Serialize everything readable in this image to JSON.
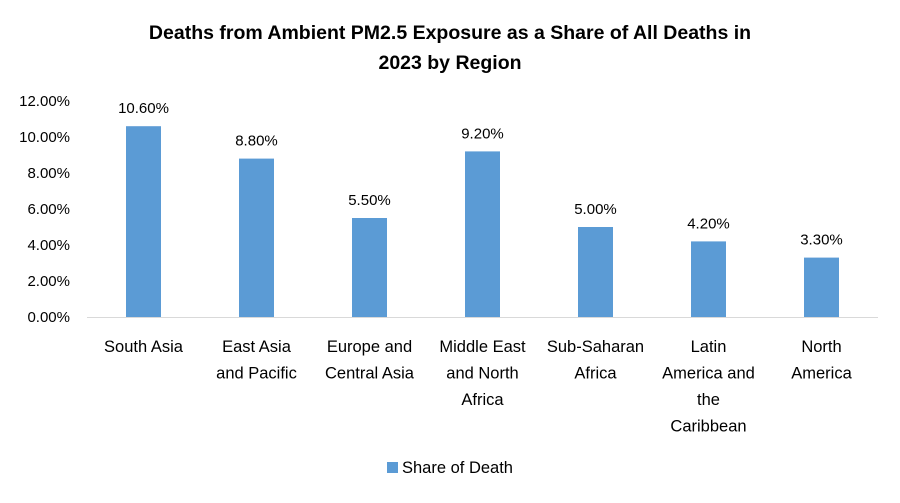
{
  "chart_data": {
    "type": "bar",
    "title": "Deaths from Ambient PM2.5 Exposure as a Share of All Deaths in 2023 by Region",
    "title_lines": [
      "Deaths from Ambient PM2.5 Exposure as a Share of All Deaths in",
      "2023 by Region"
    ],
    "xlabel": "",
    "ylabel": "",
    "categories": [
      "South Asia",
      "East Asia and Pacific",
      "Europe and Central Asia",
      "Middle East and North Africa",
      "Sub-Saharan Africa",
      "Latin America and the Caribbean",
      "North America"
    ],
    "category_label_lines": [
      [
        "South Asia"
      ],
      [
        "East Asia",
        "and Pacific"
      ],
      [
        "Europe and",
        "Central Asia"
      ],
      [
        "Middle East",
        "and North",
        "Africa"
      ],
      [
        "Sub-Saharan",
        "Africa"
      ],
      [
        "Latin",
        "America and",
        "the",
        "Caribbean"
      ],
      [
        "North",
        "America"
      ]
    ],
    "series": [
      {
        "name": "Share of Death",
        "values": [
          10.6,
          8.8,
          5.5,
          9.2,
          5.0,
          4.2,
          3.3
        ],
        "data_labels": [
          "10.60%",
          "8.80%",
          "5.50%",
          "9.20%",
          "5.00%",
          "4.20%",
          "3.30%"
        ],
        "color": "#5B9BD5"
      }
    ],
    "ylim": [
      0,
      12
    ],
    "yticks": [
      0,
      2,
      4,
      6,
      8,
      10,
      12
    ],
    "ytick_labels": [
      "0.00%",
      "2.00%",
      "4.00%",
      "6.00%",
      "8.00%",
      "10.00%",
      "12.00%"
    ],
    "grid": false,
    "legend": {
      "position": "bottom",
      "entries": [
        "Share of Death"
      ]
    },
    "axis_color": "#D9D9D9"
  }
}
